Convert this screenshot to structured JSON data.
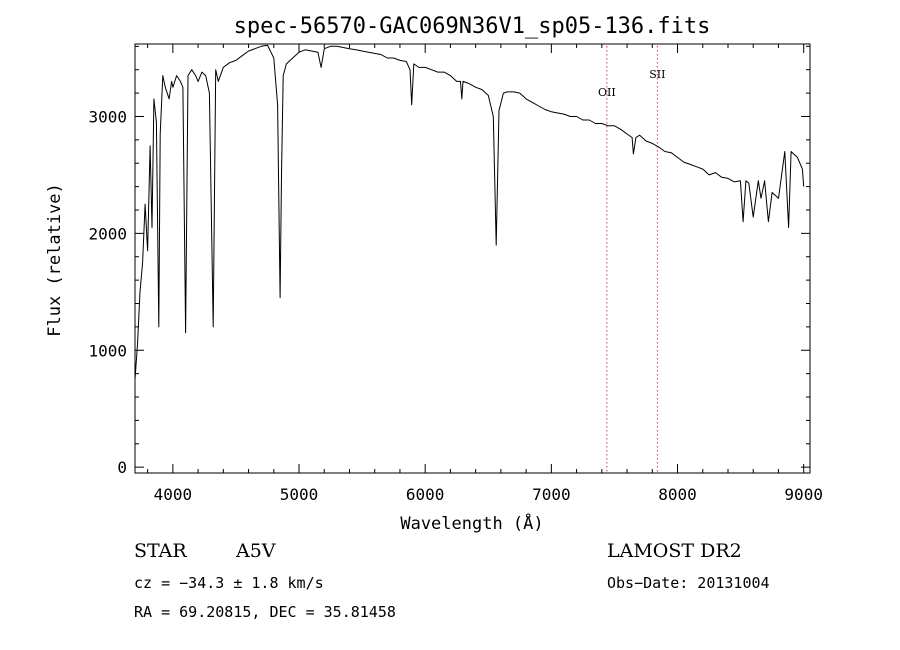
{
  "chart_data": {
    "type": "line",
    "title": "spec-56570-GAC069N36V1_sp05-136.fits",
    "xlabel": "Wavelength (Å)",
    "ylabel": "Flux (relative)",
    "xlim": [
      3700,
      9050
    ],
    "ylim": [
      -50,
      3620
    ],
    "x_ticks": [
      4000,
      5000,
      6000,
      7000,
      8000,
      9000
    ],
    "y_ticks": [
      0,
      1000,
      2000,
      3000
    ],
    "x_tick_labels": [
      "4000",
      "5000",
      "6000",
      "7000",
      "8000",
      "9000"
    ],
    "y_tick_labels": [
      "0",
      "1000",
      "2000",
      "3000"
    ],
    "grid": false,
    "series": [
      {
        "color": "#000000",
        "x": [
          3700,
          3720,
          3740,
          3760,
          3780,
          3800,
          3820,
          3835,
          3850,
          3870,
          3889,
          3900,
          3920,
          3940,
          3970,
          3990,
          4000,
          4030,
          4060,
          4080,
          4101,
          4120,
          4150,
          4180,
          4200,
          4230,
          4260,
          4290,
          4320,
          4340,
          4360,
          4400,
          4450,
          4500,
          4550,
          4600,
          4650,
          4700,
          4750,
          4800,
          4830,
          4850,
          4861,
          4875,
          4900,
          4950,
          5000,
          5050,
          5100,
          5150,
          5175,
          5200,
          5250,
          5300,
          5350,
          5400,
          5450,
          5500,
          5550,
          5600,
          5650,
          5700,
          5750,
          5800,
          5850,
          5880,
          5893,
          5910,
          5950,
          6000,
          6050,
          6100,
          6150,
          6200,
          6250,
          6280,
          6290,
          6300,
          6350,
          6400,
          6450,
          6500,
          6540,
          6563,
          6585,
          6620,
          6650,
          6700,
          6750,
          6800,
          6850,
          6900,
          6950,
          7000,
          7050,
          7100,
          7150,
          7200,
          7250,
          7300,
          7350,
          7400,
          7450,
          7500,
          7550,
          7600,
          7640,
          7650,
          7670,
          7700,
          7750,
          7800,
          7850,
          7900,
          7950,
          8000,
          8050,
          8100,
          8150,
          8200,
          8250,
          8300,
          8350,
          8400,
          8450,
          8498,
          8520,
          8542,
          8565,
          8600,
          8640,
          8662,
          8690,
          8720,
          8750,
          8800,
          8850,
          8880,
          8900,
          8950,
          8990,
          9000
        ],
        "y": [
          750,
          1050,
          1500,
          1750,
          2250,
          1850,
          2750,
          2050,
          3150,
          2950,
          1200,
          2850,
          3350,
          3250,
          3150,
          3300,
          3250,
          3350,
          3300,
          3250,
          1150,
          3350,
          3400,
          3350,
          3300,
          3380,
          3350,
          3200,
          1200,
          3400,
          3300,
          3420,
          3460,
          3480,
          3520,
          3560,
          3580,
          3600,
          3610,
          3500,
          3100,
          1450,
          2500,
          3350,
          3450,
          3500,
          3550,
          3570,
          3560,
          3550,
          3420,
          3580,
          3600,
          3600,
          3590,
          3580,
          3570,
          3560,
          3550,
          3540,
          3530,
          3500,
          3500,
          3480,
          3470,
          3400,
          3100,
          3450,
          3420,
          3420,
          3400,
          3380,
          3380,
          3350,
          3300,
          3300,
          3150,
          3300,
          3280,
          3250,
          3230,
          3180,
          3000,
          1900,
          3050,
          3200,
          3210,
          3210,
          3200,
          3150,
          3120,
          3090,
          3060,
          3040,
          3030,
          3020,
          3000,
          3000,
          2970,
          2970,
          2940,
          2940,
          2920,
          2920,
          2890,
          2850,
          2820,
          2680,
          2820,
          2840,
          2790,
          2770,
          2740,
          2700,
          2690,
          2650,
          2610,
          2590,
          2570,
          2550,
          2500,
          2520,
          2480,
          2470,
          2440,
          2450,
          2100,
          2450,
          2430,
          2140,
          2450,
          2300,
          2450,
          2100,
          2350,
          2300,
          2700,
          2050,
          2700,
          2650,
          2550,
          2400
        ]
      }
    ],
    "annotations": [
      {
        "label": "OII",
        "x": 7440
      },
      {
        "label": "SII",
        "x": 7840
      }
    ]
  },
  "footer": {
    "class_label": "STAR",
    "subclass_label": "A5V",
    "survey_label": "LAMOST DR2",
    "cz_text": "cz = −34.3 ± 1.8 km/s",
    "obs_date_text": "Obs−Date: 20131004",
    "coords_text": "RA =  69.20815, DEC =  35.81458"
  }
}
